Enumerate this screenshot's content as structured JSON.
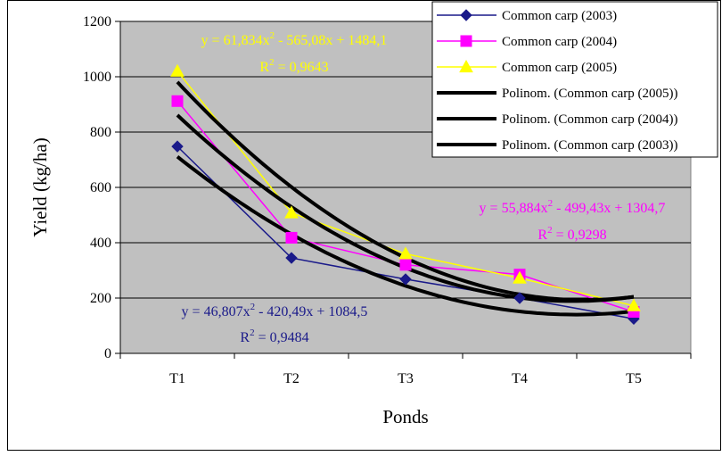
{
  "chart_data": {
    "type": "line",
    "categories": [
      "T1",
      "T2",
      "T3",
      "T4",
      "T5"
    ],
    "xlabel": "Ponds",
    "ylabel": "Yield (kg/ha)",
    "ylim": [
      0,
      1200
    ],
    "yticks": [
      "0",
      "200",
      "400",
      "600",
      "800",
      "1000",
      "1200"
    ],
    "grid": "horizontal",
    "plot_background": "#c0c0c0",
    "legend_position": "top-right",
    "series": [
      {
        "name": "Common carp (2003)",
        "values": [
          748,
          345,
          268,
          200,
          125
        ],
        "color": "#1a1a8a",
        "marker": "diamond"
      },
      {
        "name": "Common carp (2004)",
        "values": [
          912,
          418,
          320,
          285,
          150
        ],
        "color": "#ff00ff",
        "marker": "square"
      },
      {
        "name": "Common carp (2005)",
        "values": [
          1020,
          508,
          360,
          272,
          172
        ],
        "color": "#ffff00",
        "marker": "triangle"
      }
    ],
    "trendlines": [
      {
        "name": "Polinom. (Common carp (2005))",
        "coefficients": [
          61.834,
          -565.08,
          1484.1
        ],
        "color": "#000000"
      },
      {
        "name": "Polinom. (Common carp (2004))",
        "coefficients": [
          55.884,
          -499.43,
          1304.7
        ],
        "color": "#000000"
      },
      {
        "name": "Polinom. (Common carp (2003))",
        "coefficients": [
          46.807,
          -420.49,
          1084.5
        ],
        "color": "#000000"
      }
    ],
    "annotations": [
      {
        "equation": "y = 61,834x",
        "equation_tail": " - 565,08x + 1484,1",
        "r2": "0,9643",
        "color": "#ffff00"
      },
      {
        "equation": "y = 55,884x",
        "equation_tail": " - 499,43x + 1304,7",
        "r2": "0,9298",
        "color": "#ff00ff"
      },
      {
        "equation": "y = 46,807x",
        "equation_tail": " - 420,49x + 1084,5",
        "r2": "0,9484",
        "color": "#1a1a8a"
      }
    ],
    "r2_label": "R",
    "sq": "2",
    "r2_eq": " = "
  }
}
